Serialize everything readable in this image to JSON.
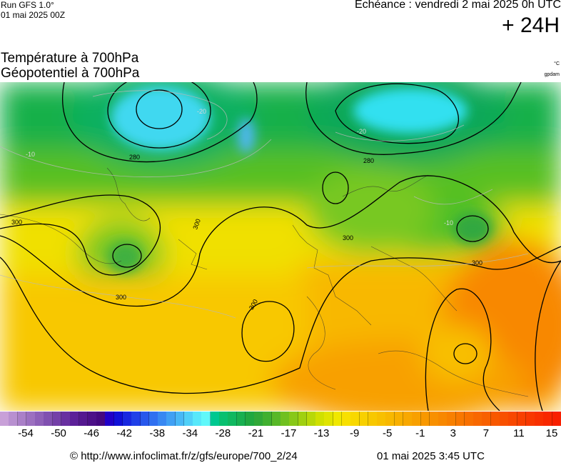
{
  "header": {
    "run": "Run GFS 1.0°",
    "run_date": "01 mai 2025 00Z",
    "echeance": "Echéance : vendredi 2 mai 2025 0h UTC",
    "lead": "+ 24H"
  },
  "titles": {
    "line1": "Température à 700hPa",
    "line2": "Géopotentiel à 700hPa",
    "unit_temp": "°C",
    "unit_geo": "gpdam"
  },
  "map": {
    "contour_labels": [
      {
        "text": "280",
        "contour": "geopotential"
      },
      {
        "text": "280",
        "contour": "geopotential"
      },
      {
        "text": "300",
        "contour": "geopotential"
      },
      {
        "text": "300",
        "contour": "geopotential"
      },
      {
        "text": "300",
        "contour": "geopotential"
      },
      {
        "text": "300",
        "contour": "geopotential"
      },
      {
        "text": "300",
        "contour": "geopotential"
      },
      {
        "text": "300",
        "contour": "geopotential"
      },
      {
        "text": "-20",
        "contour": "temperature"
      },
      {
        "text": "-20",
        "contour": "temperature"
      },
      {
        "text": "-10",
        "contour": "temperature"
      },
      {
        "text": "-10",
        "contour": "temperature"
      }
    ]
  },
  "scale": {
    "colors": [
      "#c8a0d8",
      "#b890d0",
      "#aa80c8",
      "#9c70c0",
      "#8e60b8",
      "#8050b0",
      "#7440a8",
      "#6830a0",
      "#5c2098",
      "#541890",
      "#4c1088",
      "#440880",
      "#2000c8",
      "#1010d8",
      "#1828e0",
      "#2040e8",
      "#2858ec",
      "#3070f0",
      "#3888f2",
      "#40a0f4",
      "#48b8f6",
      "#50d0f8",
      "#58e8fa",
      "#60f8fa",
      "#00c890",
      "#08c070",
      "#10b860",
      "#18b050",
      "#20a840",
      "#30a838",
      "#40b030",
      "#58b828",
      "#70c020",
      "#88c818",
      "#a0d010",
      "#b8d808",
      "#d0e000",
      "#e0e400",
      "#f0e800",
      "#f8e000",
      "#f8d800",
      "#f8d000",
      "#f8c800",
      "#f8c000",
      "#f8b800",
      "#f8b000",
      "#f8a800",
      "#f8a000",
      "#f89800",
      "#f89000",
      "#f88800",
      "#f88000",
      "#f87800",
      "#f87000",
      "#f86800",
      "#f86000",
      "#f85800",
      "#f85000",
      "#f84800",
      "#f84000",
      "#f83800",
      "#f83000",
      "#f82800",
      "#f82000"
    ],
    "ticks": [
      "-54",
      "-50",
      "-46",
      "-42",
      "-38",
      "-34",
      "-28",
      "-21",
      "-17",
      "-13",
      "-9",
      "-5",
      "-1",
      "3",
      "7",
      "11",
      "15"
    ]
  },
  "footer": {
    "credit": "© http://www.infoclimat.fr/z/gfs/europe/700_2/24",
    "timestamp": "01 mai 2025  3:45 UTC"
  }
}
